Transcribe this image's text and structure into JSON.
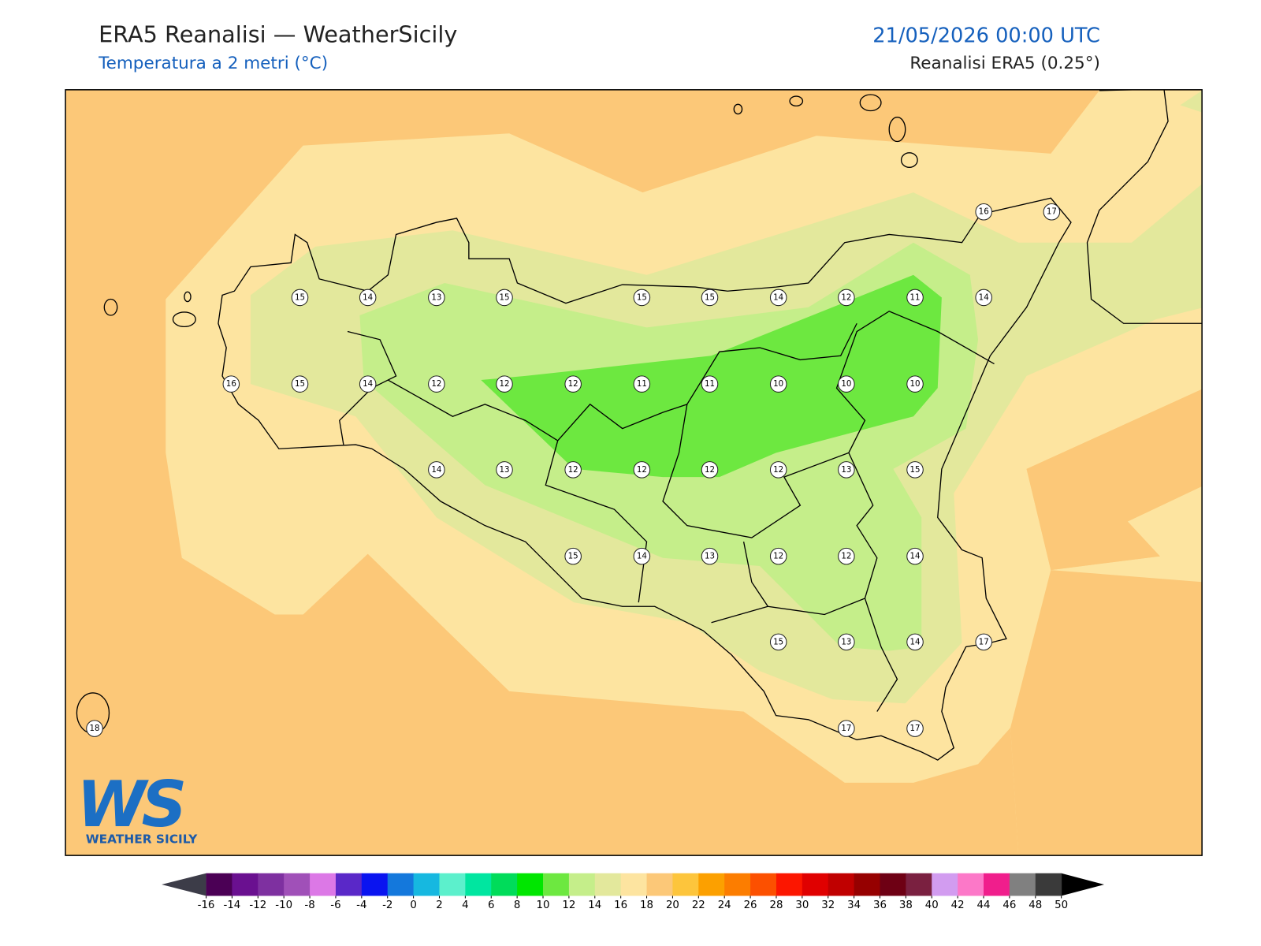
{
  "header": {
    "title": "ERA5 Reanalisi — WeatherSicily",
    "subtitle": "Temperatura a 2 metri (°C)",
    "datetime": "21/05/2026 00:00 UTC",
    "source": "Reanalisi ERA5 (0.25°)"
  },
  "map": {
    "stations": [
      16,
      17,
      15,
      14,
      13,
      15,
      15,
      15,
      14,
      12,
      11,
      14,
      16,
      15,
      14,
      12,
      12,
      12,
      11,
      11,
      10,
      10,
      10,
      14,
      13,
      12,
      12,
      12,
      12,
      13,
      15,
      15,
      14,
      13,
      12,
      12,
      14,
      15,
      13,
      14,
      17,
      18,
      17,
      17
    ]
  },
  "logo": {
    "initials": "WS",
    "name": "WEATHER SICILY"
  },
  "colorbar": {
    "ticks": [
      -16,
      -14,
      -12,
      -10,
      -8,
      -6,
      -4,
      -2,
      0,
      2,
      4,
      6,
      8,
      10,
      12,
      14,
      16,
      18,
      20,
      22,
      24,
      26,
      28,
      30,
      32,
      34,
      36,
      38,
      40,
      42,
      44,
      46,
      48,
      50
    ],
    "colors": [
      "#4b0055",
      "#6a1090",
      "#7e30a0",
      "#a050b8",
      "#dc78e6",
      "#5a28c8",
      "#0a14f0",
      "#1478dc",
      "#16b8e0",
      "#5cf0cc",
      "#00e6a0",
      "#00dc5a",
      "#00e600",
      "#6de840",
      "#c5ee8a",
      "#e3e89c",
      "#fde4a0",
      "#fcc878",
      "#fdc53c",
      "#fca000",
      "#fc7d00",
      "#fc5000",
      "#fc1600",
      "#e00000",
      "#c00000",
      "#960000",
      "#6e0014",
      "#7a2040",
      "#d29cf0",
      "#fc78c8",
      "#f01e8c",
      "#808080",
      "#3a3a3a"
    ],
    "under_color": "#3c3c48",
    "over_color": "#000000"
  }
}
